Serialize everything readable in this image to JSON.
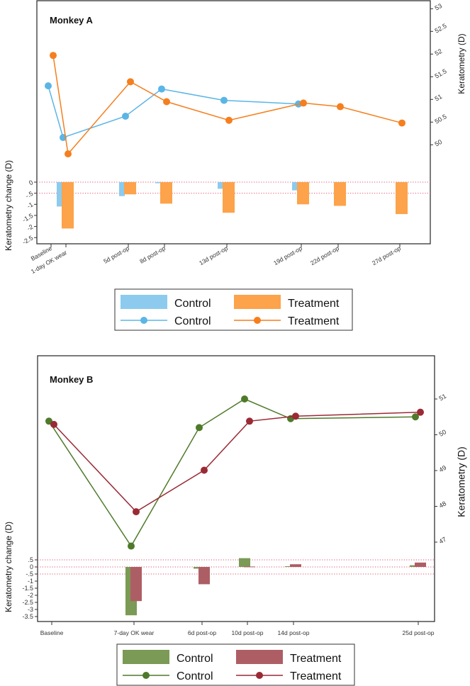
{
  "chart_data": [
    {
      "type": "bar+line",
      "title": "Monkey A",
      "ylabel_left": "Keratometry change (D)",
      "ylabel_right": "Keratometry (D)",
      "categories": [
        "Baseline",
        "1-day OK wear",
        "5d post-op",
        "8d post-op",
        "13d post-op",
        "19d post-op",
        "22d post-op",
        "27d post-op"
      ],
      "right_axis": {
        "ylim": [
          49.5,
          53
        ],
        "ticks": [
          "53",
          "52.5",
          "52",
          "51.5",
          "51",
          "50.5",
          "50"
        ],
        "tick_values": [
          53,
          52.5,
          52,
          51.5,
          51,
          50.5,
          50
        ]
      },
      "left_axis": {
        "ylim": [
          -2.6,
          0
        ],
        "ticks": [
          "0",
          "-.5",
          "-1",
          "-1.5",
          "-2",
          "-2.5"
        ],
        "tick_values": [
          0,
          -0.5,
          -1,
          -1.5,
          -2,
          -2.5
        ]
      },
      "reference_lines": [
        0,
        -0.5
      ],
      "bars": [
        {
          "name": "Control",
          "color": "#8ccbee",
          "values": [
            null,
            -1.1,
            -0.63,
            -0.05,
            -0.3,
            -0.37,
            null,
            null
          ]
        },
        {
          "name": "Treatment",
          "color": "#fca34b",
          "values": [
            null,
            -2.09,
            -0.55,
            -0.97,
            -1.38,
            -1.0,
            -1.07,
            -1.44
          ]
        }
      ],
      "lines": [
        {
          "name": "Control",
          "color": "#5bb5e6",
          "values": [
            51.3,
            50.16,
            50.63,
            51.23,
            50.98,
            50.9,
            null,
            null
          ]
        },
        {
          "name": "Treatment",
          "color": "#f57f1e",
          "values": [
            51.97,
            49.8,
            51.39,
            50.95,
            50.54,
            50.92,
            50.84,
            50.48
          ]
        }
      ],
      "legend": {
        "placement": "bottom",
        "items": [
          "Control",
          "Treatment",
          "Control",
          "Treatment"
        ]
      }
    },
    {
      "type": "bar+line",
      "title": "Monkey B",
      "ylabel_left": "Keratometry change (D)",
      "ylabel_right": "Keratometry (D)",
      "categories": [
        "Baseline",
        "7-day OK wear",
        "6d post-op",
        "10d post-op",
        "14d post-op",
        "25d post-op"
      ],
      "right_axis": {
        "ylim": [
          46.5,
          52
        ],
        "ticks": [
          "51",
          "50",
          "49",
          "48",
          "47"
        ],
        "tick_values": [
          51,
          50,
          49,
          48,
          47
        ]
      },
      "left_axis": {
        "ylim": [
          -3.5,
          0.5
        ],
        "ticks": [
          ".5",
          "0",
          "-.5",
          "-1",
          "-1.5",
          "-2",
          "-2.5",
          "-3",
          "-3.5"
        ],
        "tick_values": [
          0.5,
          0,
          -0.5,
          -1,
          -1.5,
          -2,
          -2.5,
          -3,
          -3.5
        ]
      },
      "reference_lines": [
        0.5,
        0,
        -0.5
      ],
      "bars": [
        {
          "name": "Control",
          "color": "#7a9a55",
          "values": [
            null,
            -3.41,
            -0.12,
            0.62,
            0.05,
            0.12
          ]
        },
        {
          "name": "Treatment",
          "color": "#ad5e64",
          "values": [
            null,
            -2.41,
            -1.22,
            0.03,
            0.19,
            0.31
          ]
        }
      ],
      "lines": [
        {
          "name": "Control",
          "color": "#4e7a2a",
          "values": [
            50.38,
            46.89,
            50.2,
            51.0,
            50.45,
            50.5
          ]
        },
        {
          "name": "Treatment",
          "color": "#9a2a35",
          "values": [
            50.29,
            47.85,
            49.01,
            50.38,
            50.52,
            50.63
          ]
        }
      ],
      "legend": {
        "placement": "bottom",
        "items": [
          "Control",
          "Treatment",
          "Control",
          "Treatment"
        ]
      }
    }
  ]
}
